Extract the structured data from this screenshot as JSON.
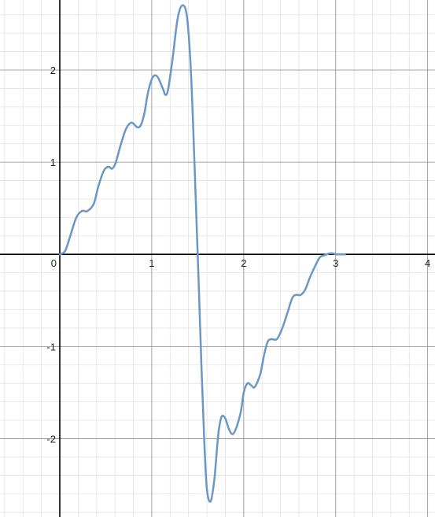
{
  "chart_data": {
    "type": "line",
    "title": "",
    "xlabel": "",
    "ylabel": "",
    "xlim": [
      -0.65,
      4.08
    ],
    "ylim": [
      -2.85,
      2.76
    ],
    "x_ticks": [
      {
        "value": 0,
        "label": "0"
      },
      {
        "value": 1,
        "label": "1"
      },
      {
        "value": 2,
        "label": "2"
      },
      {
        "value": 3,
        "label": "3"
      },
      {
        "value": 4,
        "label": "4"
      }
    ],
    "y_ticks": [
      {
        "value": 2,
        "label": "2"
      },
      {
        "value": 1,
        "label": "1"
      },
      {
        "value": -1,
        "label": "-1"
      },
      {
        "value": -2,
        "label": "-2"
      }
    ],
    "grid": true,
    "minor_grid_step": 0.2,
    "major_grid_step": 1,
    "series": [
      {
        "color": "#6b97c6",
        "x": [
          0.0,
          0.06,
          0.12,
          0.18,
          0.24,
          0.3,
          0.37,
          0.42,
          0.48,
          0.53,
          0.57,
          0.61,
          0.66,
          0.72,
          0.78,
          0.84,
          0.88,
          0.92,
          0.96,
          1.01,
          1.06,
          1.12,
          1.15,
          1.18,
          1.23,
          1.28,
          1.33,
          1.38,
          1.42,
          1.45,
          1.48,
          1.51,
          1.54,
          1.57,
          1.6,
          1.64,
          1.68,
          1.71,
          1.73,
          1.76,
          1.8,
          1.84,
          1.88,
          1.92,
          1.97,
          2.0,
          2.04,
          2.08,
          2.12,
          2.18,
          2.22,
          2.26,
          2.3,
          2.36,
          2.42,
          2.48,
          2.53,
          2.57,
          2.62,
          2.67,
          2.72,
          2.78,
          2.83,
          2.88,
          2.93,
          2.97,
          3.01,
          3.05,
          3.08,
          3.1
        ],
        "y": [
          0.0,
          0.04,
          0.22,
          0.4,
          0.47,
          0.47,
          0.55,
          0.74,
          0.91,
          0.95,
          0.93,
          1.0,
          1.18,
          1.36,
          1.43,
          1.38,
          1.4,
          1.53,
          1.76,
          1.92,
          1.93,
          1.8,
          1.73,
          1.8,
          2.15,
          2.55,
          2.7,
          2.6,
          2.1,
          1.4,
          0.55,
          -0.3,
          -1.2,
          -2.0,
          -2.55,
          -2.68,
          -2.45,
          -2.1,
          -1.9,
          -1.76,
          -1.78,
          -1.9,
          -1.95,
          -1.88,
          -1.7,
          -1.5,
          -1.4,
          -1.42,
          -1.44,
          -1.3,
          -1.1,
          -0.95,
          -0.92,
          -0.92,
          -0.8,
          -0.62,
          -0.47,
          -0.44,
          -0.44,
          -0.38,
          -0.25,
          -0.12,
          -0.03,
          -0.01,
          0.01,
          0.01,
          0.0,
          0.0,
          0.0,
          0.0
        ]
      }
    ]
  }
}
